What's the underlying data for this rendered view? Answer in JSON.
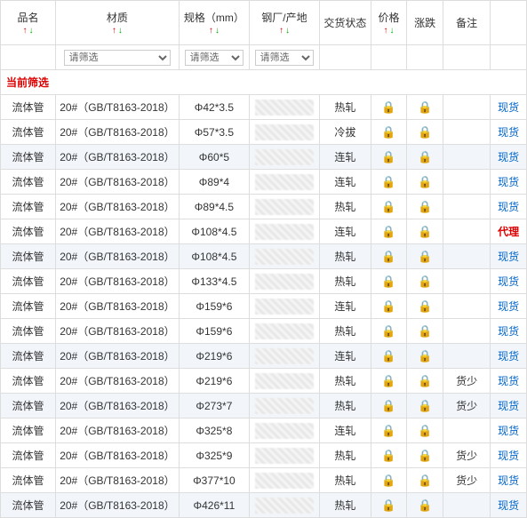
{
  "headers": {
    "name": "品名",
    "material": "材质",
    "spec": "规格（mm）",
    "origin": "钢厂/产地",
    "status": "交货状态",
    "price": "价格",
    "change": "涨跌",
    "note": "备注",
    "remark": ""
  },
  "filter_placeholder": "请筛选",
  "current_filter_label": "当前筛选",
  "arrows": {
    "up": "↑",
    "down": "↓"
  },
  "lock_icon": "🔒",
  "colors": {
    "up": "#d00",
    "down": "#0a0",
    "link": "#06c",
    "border": "#ddd",
    "alt_row": "#f2f6fb"
  },
  "remark_labels": {
    "spot": "现货",
    "agent": "代理"
  },
  "rows": [
    {
      "name": "流体管",
      "material": "20#（GB/T8163-2018）",
      "spec": "Φ42*3.5",
      "status": "热轧",
      "note": "",
      "remark": "spot",
      "alt": false
    },
    {
      "name": "流体管",
      "material": "20#（GB/T8163-2018）",
      "spec": "Φ57*3.5",
      "status": "冷拔",
      "note": "",
      "remark": "spot",
      "alt": false
    },
    {
      "name": "流体管",
      "material": "20#（GB/T8163-2018）",
      "spec": "Φ60*5",
      "status": "连轧",
      "note": "",
      "remark": "spot",
      "alt": true
    },
    {
      "name": "流体管",
      "material": "20#（GB/T8163-2018）",
      "spec": "Φ89*4",
      "status": "连轧",
      "note": "",
      "remark": "spot",
      "alt": false
    },
    {
      "name": "流体管",
      "material": "20#（GB/T8163-2018）",
      "spec": "Φ89*4.5",
      "status": "热轧",
      "note": "",
      "remark": "spot",
      "alt": false
    },
    {
      "name": "流体管",
      "material": "20#（GB/T8163-2018）",
      "spec": "Φ108*4.5",
      "status": "连轧",
      "note": "",
      "remark": "agent",
      "alt": false
    },
    {
      "name": "流体管",
      "material": "20#（GB/T8163-2018）",
      "spec": "Φ108*4.5",
      "status": "热轧",
      "note": "",
      "remark": "spot",
      "alt": true
    },
    {
      "name": "流体管",
      "material": "20#（GB/T8163-2018）",
      "spec": "Φ133*4.5",
      "status": "热轧",
      "note": "",
      "remark": "spot",
      "alt": false
    },
    {
      "name": "流体管",
      "material": "20#（GB/T8163-2018）",
      "spec": "Φ159*6",
      "status": "连轧",
      "note": "",
      "remark": "spot",
      "alt": false
    },
    {
      "name": "流体管",
      "material": "20#（GB/T8163-2018）",
      "spec": "Φ159*6",
      "status": "热轧",
      "note": "",
      "remark": "spot",
      "alt": false
    },
    {
      "name": "流体管",
      "material": "20#（GB/T8163-2018）",
      "spec": "Φ219*6",
      "status": "连轧",
      "note": "",
      "remark": "spot",
      "alt": true
    },
    {
      "name": "流体管",
      "material": "20#（GB/T8163-2018）",
      "spec": "Φ219*6",
      "status": "热轧",
      "note": "货少",
      "remark": "spot",
      "alt": false
    },
    {
      "name": "流体管",
      "material": "20#（GB/T8163-2018）",
      "spec": "Φ273*7",
      "status": "热轧",
      "note": "货少",
      "remark": "spot",
      "alt": true
    },
    {
      "name": "流体管",
      "material": "20#（GB/T8163-2018）",
      "spec": "Φ325*8",
      "status": "连轧",
      "note": "",
      "remark": "spot",
      "alt": false
    },
    {
      "name": "流体管",
      "material": "20#（GB/T8163-2018）",
      "spec": "Φ325*9",
      "status": "热轧",
      "note": "货少",
      "remark": "spot",
      "alt": false
    },
    {
      "name": "流体管",
      "material": "20#（GB/T8163-2018）",
      "spec": "Φ377*10",
      "status": "热轧",
      "note": "货少",
      "remark": "spot",
      "alt": false
    },
    {
      "name": "流体管",
      "material": "20#（GB/T8163-2018）",
      "spec": "Φ426*11",
      "status": "热轧",
      "note": "",
      "remark": "spot",
      "alt": true
    }
  ]
}
